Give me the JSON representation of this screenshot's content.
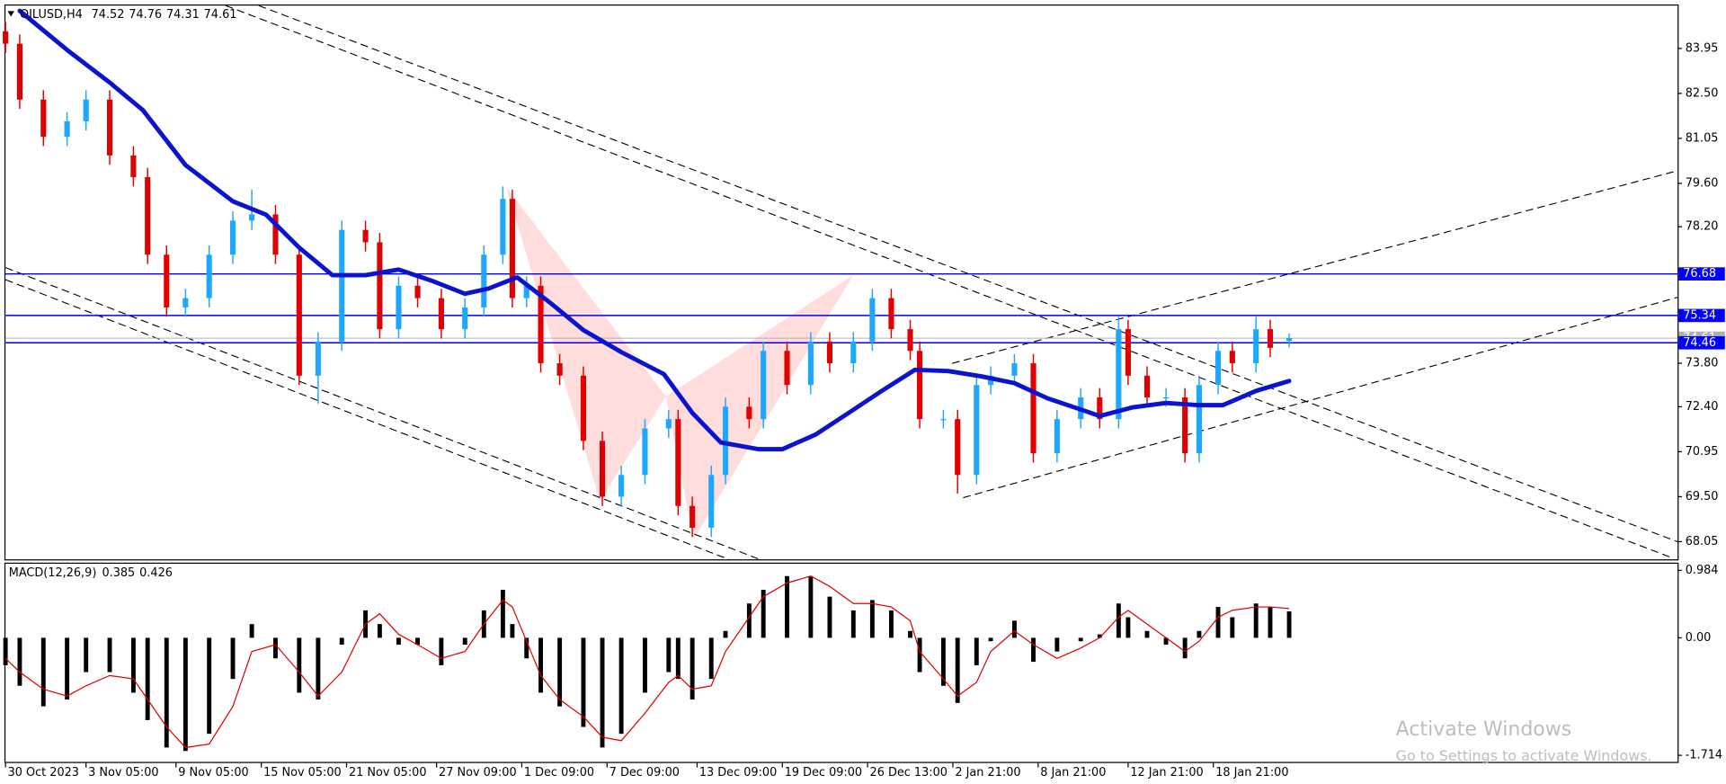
{
  "chart_data": [
    {
      "type": "candlestick",
      "header": {
        "symbol": "OILUSD,H4",
        "open": 74.52,
        "high": 74.76,
        "low": 74.31,
        "close": 74.61
      },
      "x": [
        0,
        3,
        8,
        13,
        17,
        22,
        27,
        30,
        34,
        38,
        43,
        48,
        52,
        57,
        62,
        66,
        71,
        76,
        79,
        83,
        87,
        92,
        97,
        101,
        105,
        107,
        110,
        113,
        117,
        122,
        126,
        130,
        135,
        140,
        142,
        145,
        149,
        152,
        157,
        160,
        165,
        170,
        174,
        179,
        183,
        187,
        191,
        193,
        198,
        201,
        205,
        208,
        213,
        217,
        222,
        227,
        231,
        235,
        237,
        241,
        245,
        249,
        252,
        256,
        259,
        264,
        267,
        271
      ],
      "open": [
        84.5,
        84.1,
        82.3,
        81.1,
        81.6,
        82.3,
        80.5,
        79.8,
        77.3,
        75.6,
        75.9,
        77.3,
        78.4,
        78.6,
        77.3,
        73.4,
        74.5,
        78.1,
        77.7,
        74.9,
        76.3,
        75.9,
        74.9,
        75.6,
        77.3,
        79.1,
        75.9,
        76.3,
        73.8,
        73.4,
        71.3,
        69.5,
        70.2,
        71.7,
        72.0,
        69.2,
        68.5,
        70.2,
        72.4,
        72.0,
        74.2,
        73.1,
        74.5,
        73.8,
        74.5,
        75.9,
        74.9,
        74.2,
        72.0,
        72.0,
        70.2,
        73.1,
        73.4,
        73.8,
        70.9,
        72.0,
        72.7,
        72.0,
        74.9,
        73.4,
        72.7,
        72.7,
        70.9,
        73.1,
        74.2,
        73.8,
        74.9,
        74.52
      ],
      "high": [
        84.8,
        84.4,
        82.6,
        81.9,
        82.6,
        82.6,
        80.8,
        80.1,
        77.6,
        76.2,
        77.6,
        78.7,
        79.4,
        78.9,
        77.6,
        74.8,
        78.4,
        78.4,
        78.0,
        76.6,
        76.6,
        76.2,
        75.9,
        77.6,
        79.5,
        79.4,
        76.6,
        76.6,
        74.1,
        73.7,
        71.6,
        70.5,
        72.0,
        72.3,
        72.3,
        69.5,
        70.5,
        72.7,
        72.7,
        74.5,
        74.5,
        74.8,
        74.8,
        74.8,
        76.2,
        76.2,
        75.2,
        74.5,
        72.3,
        72.3,
        73.4,
        73.7,
        74.1,
        74.1,
        72.3,
        73.0,
        73.0,
        75.3,
        75.2,
        73.7,
        73.0,
        73.0,
        73.4,
        74.5,
        74.5,
        75.3,
        75.2,
        74.76
      ],
      "low": [
        83.8,
        82.0,
        80.8,
        80.8,
        81.3,
        80.2,
        79.5,
        77.0,
        75.3,
        75.3,
        75.6,
        77.0,
        78.1,
        77.0,
        73.1,
        72.5,
        74.2,
        77.4,
        74.6,
        74.6,
        75.6,
        74.6,
        74.6,
        75.3,
        77.0,
        75.6,
        75.6,
        73.5,
        73.1,
        71.0,
        69.2,
        69.2,
        69.9,
        71.4,
        68.9,
        68.2,
        68.2,
        69.9,
        71.7,
        71.7,
        72.8,
        72.8,
        73.5,
        73.5,
        74.2,
        74.6,
        73.9,
        71.7,
        71.7,
        69.6,
        69.9,
        72.8,
        73.1,
        70.6,
        70.6,
        71.7,
        71.7,
        71.7,
        73.1,
        72.4,
        72.4,
        70.6,
        70.6,
        72.8,
        73.5,
        73.5,
        74.0,
        74.31
      ],
      "close": [
        84.1,
        82.3,
        81.1,
        81.6,
        82.3,
        80.5,
        79.8,
        77.3,
        75.6,
        75.9,
        77.3,
        78.4,
        78.6,
        77.3,
        73.4,
        74.5,
        78.1,
        77.7,
        74.9,
        76.3,
        75.9,
        74.9,
        75.6,
        77.3,
        79.1,
        75.9,
        76.3,
        73.8,
        73.4,
        71.3,
        69.5,
        70.2,
        71.7,
        72.0,
        69.2,
        68.5,
        70.2,
        72.4,
        72.0,
        74.2,
        73.1,
        74.5,
        73.8,
        74.5,
        75.9,
        74.9,
        74.2,
        72.0,
        72.0,
        70.2,
        73.1,
        73.4,
        73.8,
        70.9,
        72.0,
        72.7,
        72.0,
        74.9,
        73.4,
        72.7,
        72.7,
        70.9,
        73.1,
        74.2,
        73.8,
        74.9,
        74.3,
        74.61
      ],
      "up_color": "#1ea7ff",
      "down_color": "#e00000",
      "ma": {
        "color": "#0a14d0",
        "x": [
          3,
          13,
          22,
          29,
          38,
          48,
          55,
          62,
          69,
          76,
          83,
          90,
          97,
          102,
          108,
          115,
          122,
          130,
          139,
          145,
          151,
          159,
          164,
          171,
          178,
          185,
          192,
          199,
          206,
          213,
          220,
          227,
          231,
          238,
          245,
          252,
          257,
          264,
          271
        ],
        "values": [
          85.16,
          83.9,
          82.85,
          81.96,
          80.19,
          79.02,
          78.59,
          77.53,
          76.64,
          76.64,
          76.82,
          76.46,
          76.04,
          76.21,
          76.57,
          75.75,
          74.87,
          74.16,
          73.45,
          72.2,
          71.25,
          71.03,
          71.03,
          71.5,
          72.2,
          72.91,
          73.59,
          73.55,
          73.38,
          73.16,
          72.67,
          72.31,
          72.1,
          72.38,
          72.52,
          72.45,
          72.45,
          72.91,
          73.23
        ]
      },
      "levels": [
        {
          "value": 76.68,
          "color": "#0000ff"
        },
        {
          "value": 75.34,
          "color": "#0000ff"
        },
        {
          "value": 74.46,
          "color": "#0000ff"
        }
      ],
      "xlim": [
        0,
        353
      ],
      "ylim": [
        67.48,
        85.33
      ],
      "yticks": [
        83.95,
        {
          "value": 82.5,
          "label": "82.50"
        },
        81.05,
        {
          "value": 79.6,
          "label": "79.60"
        },
        {
          "value": 78.2,
          "label": "78.20"
        },
        {
          "value": 73.8,
          "label": "73.80"
        },
        {
          "value": 72.4,
          "label": "72.40"
        },
        70.95,
        {
          "value": 69.5,
          "label": "69.50"
        },
        68.05
      ],
      "xticks": [
        {
          "value": 0,
          "label": "30 Oct 2023"
        },
        {
          "value": 17,
          "label": "3 Nov 05:00"
        },
        {
          "value": 36,
          "label": "9 Nov 05:00"
        },
        {
          "value": 54,
          "label": "15 Nov 05:00"
        },
        {
          "value": 72,
          "label": "21 Nov 05:00"
        },
        {
          "value": 91,
          "label": "27 Nov 09:00"
        },
        {
          "value": 109,
          "label": "1 Dec 09:00"
        },
        {
          "value": 127,
          "label": "7 Dec 09:00"
        },
        {
          "value": 146,
          "label": "13 Dec 09:00"
        },
        {
          "value": 164,
          "label": "19 Dec 09:00"
        },
        {
          "value": 182,
          "label": "26 Dec 13:00"
        },
        {
          "value": 200,
          "label": "2 Jan 21:00"
        },
        {
          "value": 218,
          "label": "8 Jan 21:00"
        },
        {
          "value": 237,
          "label": "12 Jan 21:00"
        },
        {
          "value": 255,
          "label": "18 Jan 21:00"
        }
      ]
    },
    {
      "type": "macd",
      "title": "MACD(12,26,9)",
      "histogram": {
        "color": "#000000",
        "values": [
          -0.4,
          -0.7,
          -1.0,
          -0.9,
          -0.5,
          -0.5,
          -0.8,
          -1.2,
          -1.6,
          -1.65,
          -1.4,
          -0.6,
          0.2,
          -0.3,
          -0.8,
          -0.9,
          -0.1,
          0.4,
          0.2,
          -0.1,
          -0.1,
          -0.4,
          -0.1,
          0.4,
          0.7,
          0.2,
          -0.3,
          -0.8,
          -1.0,
          -1.3,
          -1.6,
          -1.4,
          -0.8,
          -0.5,
          -0.6,
          -0.9,
          -0.6,
          0.1,
          0.5,
          0.7,
          0.9,
          0.9,
          0.6,
          0.4,
          0.55,
          0.4,
          0.1,
          -0.5,
          -0.7,
          -0.95,
          -0.4,
          -0.05,
          0.25,
          -0.35,
          -0.2,
          -0.05,
          0.05,
          0.5,
          0.3,
          0.1,
          -0.1,
          -0.3,
          0.1,
          0.45,
          0.3,
          0.5,
          0.45,
          0.385
        ]
      },
      "signal": {
        "color": "#e00000",
        "values": [
          -0.3,
          -0.5,
          -0.75,
          -0.85,
          -0.7,
          -0.55,
          -0.6,
          -0.9,
          -1.3,
          -1.6,
          -1.55,
          -1.0,
          -0.2,
          -0.1,
          -0.5,
          -0.85,
          -0.5,
          0.2,
          0.35,
          0.05,
          -0.1,
          -0.3,
          -0.2,
          0.2,
          0.55,
          0.45,
          -0.05,
          -0.55,
          -0.9,
          -1.15,
          -1.45,
          -1.5,
          -1.1,
          -0.65,
          -0.55,
          -0.75,
          -0.7,
          -0.2,
          0.3,
          0.6,
          0.8,
          0.9,
          0.75,
          0.5,
          0.5,
          0.45,
          0.25,
          -0.2,
          -0.6,
          -0.85,
          -0.65,
          -0.2,
          0.1,
          -0.1,
          -0.3,
          -0.15,
          0.0,
          0.3,
          0.4,
          0.2,
          0.0,
          -0.2,
          -0.05,
          0.3,
          0.4,
          0.45,
          0.45,
          0.426
        ]
      },
      "ylim": [
        -1.81,
        1.08
      ],
      "yticks": [
        0.984,
        {
          "value": 0,
          "label": "0.00"
        },
        -1.714
      ]
    }
  ],
  "watermark": {
    "title": "Activate Windows",
    "subtitle": "Go to Settings to activate Windows."
  }
}
